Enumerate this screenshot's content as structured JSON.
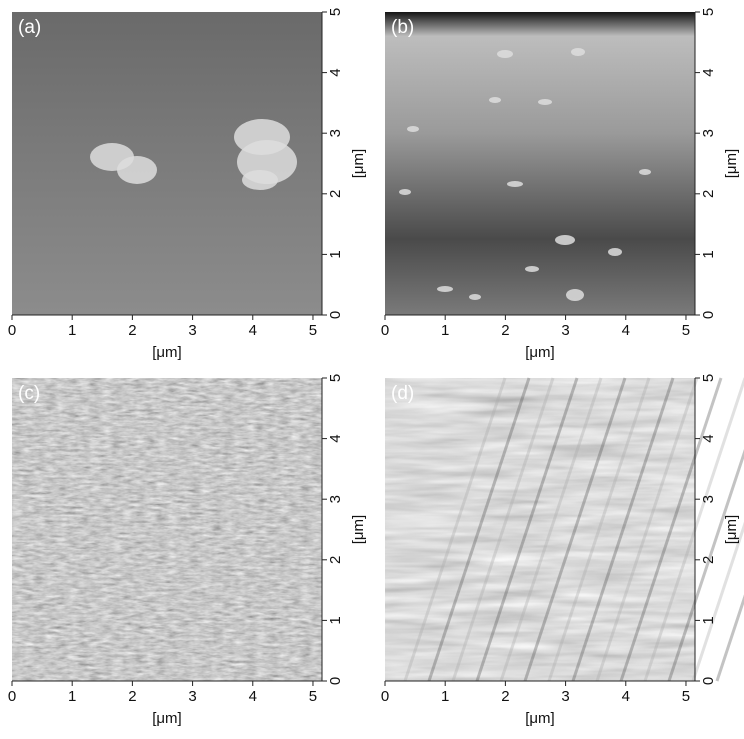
{
  "panels": [
    {
      "label": "(a)",
      "xlabel": "[μm]",
      "ylabel": "[μm]",
      "xlim": [
        0,
        5.15
      ],
      "ylim": [
        0,
        5
      ],
      "xticks": [
        0,
        1,
        2,
        3,
        4,
        5
      ],
      "yticks": [
        0,
        1,
        2,
        3,
        4,
        5
      ]
    },
    {
      "label": "(b)",
      "xlabel": "[μm]",
      "ylabel": "[μm]",
      "xlim": [
        0,
        5.15
      ],
      "ylim": [
        0,
        5
      ],
      "xticks": [
        0,
        1,
        2,
        3,
        4,
        5
      ],
      "yticks": [
        0,
        1,
        2,
        3,
        4,
        5
      ]
    },
    {
      "label": "(c)",
      "xlabel": "[μm]",
      "ylabel": "[μm]",
      "xlim": [
        0,
        5.15
      ],
      "ylim": [
        0,
        5
      ],
      "xticks": [
        0,
        1,
        2,
        3,
        4,
        5
      ],
      "yticks": [
        0,
        1,
        2,
        3,
        4,
        5
      ]
    },
    {
      "label": "(d)",
      "xlabel": "[μm]",
      "ylabel": "[μm]",
      "xlim": [
        0,
        5.15
      ],
      "ylim": [
        0,
        5
      ],
      "xticks": [
        0,
        1,
        2,
        3,
        4,
        5
      ],
      "yticks": [
        0,
        1,
        2,
        3,
        4,
        5
      ]
    }
  ]
}
